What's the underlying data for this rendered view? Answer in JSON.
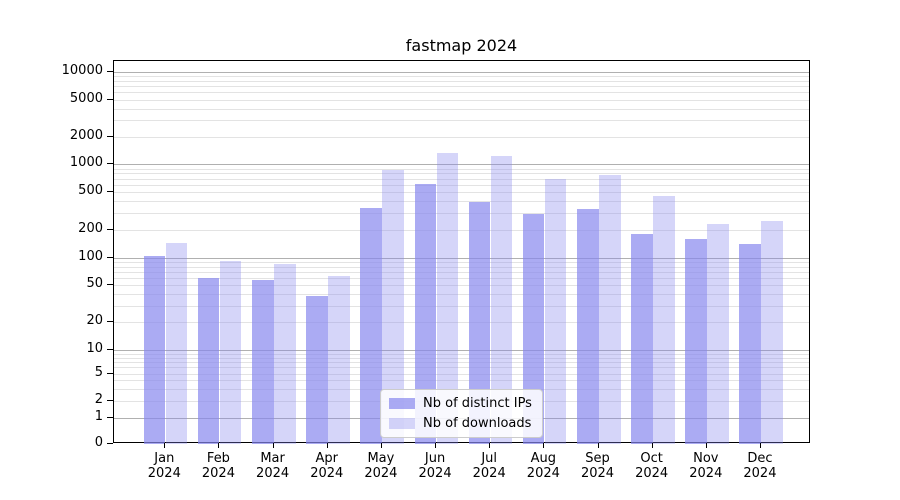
{
  "chart_data": {
    "type": "bar",
    "title": "fastmap 2024",
    "categories": [
      "Jan 2024",
      "Feb 2024",
      "Mar 2024",
      "Apr 2024",
      "May 2024",
      "Jun 2024",
      "Jul 2024",
      "Aug 2024",
      "Sep 2024",
      "Oct 2024",
      "Nov 2024",
      "Dec 2024"
    ],
    "series": [
      {
        "name": "Nb of distinct IPs",
        "color": "rgba(136,136,238,0.7)",
        "values": [
          105,
          60,
          57,
          38,
          340,
          615,
          390,
          295,
          335,
          180,
          158,
          140
        ]
      },
      {
        "name": "Nb of downloads",
        "color": "rgba(136,136,238,0.35)",
        "values": [
          142,
          93,
          85,
          64,
          870,
          1330,
          1240,
          700,
          775,
          455,
          230,
          245
        ]
      }
    ],
    "yscale": "symlog",
    "ytick_values": [
      0,
      1,
      2,
      5,
      10,
      20,
      50,
      100,
      200,
      500,
      1000,
      2000,
      5000,
      10000
    ],
    "ytick_labels": [
      "0",
      "1",
      "2",
      "5",
      "10",
      "20",
      "50",
      "100",
      "200",
      "500",
      "1000",
      "2000",
      "5000",
      "10000"
    ],
    "ylim": [
      0,
      13000
    ],
    "grid": "horizontal, major and minor, log decades",
    "grid_major_values": [
      1,
      10,
      100,
      1000,
      10000
    ],
    "legend_position": "lower center",
    "colors": {
      "grid_major": "#b0b0b0",
      "grid_minor": "#e3e3e3",
      "axis": "#000000",
      "background": "#ffffff"
    },
    "scale_anchors": [
      [
        0,
        443
      ],
      [
        1,
        416.5
      ],
      [
        2,
        400
      ],
      [
        5,
        372.7
      ],
      [
        10,
        349
      ],
      [
        100,
        256.7
      ],
      [
        1000,
        163.3
      ],
      [
        10000,
        71
      ]
    ]
  }
}
